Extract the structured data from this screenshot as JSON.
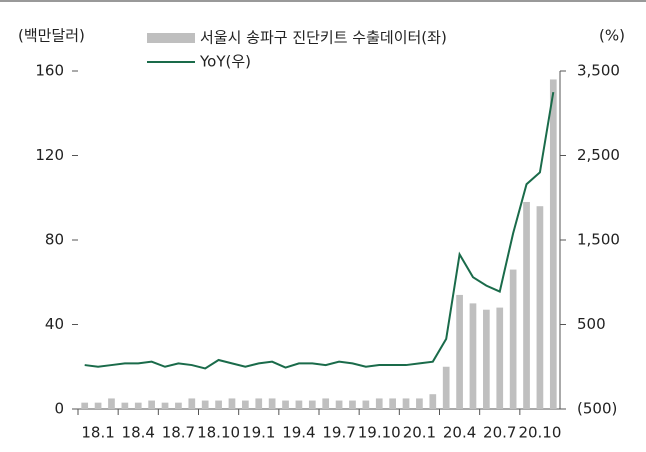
{
  "chart_data": {
    "type": "bar",
    "y_label": "(백만달러)",
    "y2_label": "(%)",
    "categories": [
      "18.1",
      null,
      null,
      "18.4",
      null,
      null,
      "18.7",
      null,
      null,
      "18.10",
      null,
      null,
      "19.1",
      null,
      null,
      "19.4",
      null,
      null,
      "19.7",
      null,
      null,
      "19.10",
      null,
      null,
      "20.1",
      null,
      null,
      "20.4",
      null,
      null,
      "20.7",
      null,
      null,
      "20.10",
      null,
      null
    ],
    "series": [
      {
        "name": "서울시 송파구 진단키트 수출데이터(좌)",
        "type": "bar",
        "color": "#bfbfbf",
        "values": [
          3,
          3,
          5,
          3,
          3,
          4,
          3,
          3,
          5,
          4,
          4,
          5,
          4,
          5,
          5,
          4,
          4,
          4,
          5,
          4,
          4,
          4,
          5,
          5,
          5,
          5,
          7,
          20,
          54,
          50,
          47,
          48,
          66,
          98,
          96,
          156
        ]
      },
      {
        "name": "YoY(우)",
        "type": "line",
        "axis": "y2",
        "color": "#1a6b4a",
        "values": [
          20,
          0,
          20,
          40,
          40,
          60,
          0,
          40,
          20,
          -20,
          80,
          40,
          0,
          40,
          60,
          -10,
          40,
          40,
          20,
          60,
          40,
          0,
          20,
          20,
          20,
          40,
          60,
          330,
          1330,
          1060,
          960,
          890,
          1580,
          2160,
          2300,
          3250
        ]
      }
    ],
    "ylim": [
      0,
      160
    ],
    "yticks": [
      0,
      40,
      80,
      120,
      160
    ],
    "y2lim": [
      -500,
      3500
    ],
    "y2ticks": [
      {
        "value": -500,
        "label": "(500)"
      },
      500,
      {
        "value": 1500,
        "label": "1,500"
      },
      {
        "value": 2500,
        "label": "2,500"
      },
      {
        "value": 3500,
        "label": "3,500"
      }
    ]
  }
}
